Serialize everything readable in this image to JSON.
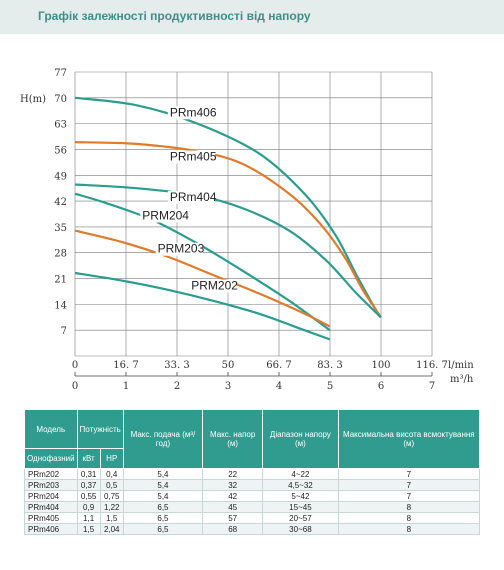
{
  "header": {
    "title": "Графік залежності продуктивності від напору"
  },
  "chart_data": {
    "type": "line",
    "ylabel": "H(m)",
    "y_ticks": [
      "77",
      "70",
      "63",
      "56",
      "49",
      "42",
      "35",
      "28",
      "21",
      "14",
      "7"
    ],
    "x_ticks_lmin": [
      "0",
      "16. 7",
      "33. 3",
      "50",
      "66. 7",
      "83. 3",
      "100",
      "116. 7"
    ],
    "x_ticks_m3h": [
      "0",
      "1",
      "2",
      "3",
      "4",
      "5",
      "6",
      "7"
    ],
    "x_unit_lmin": "l/min",
    "x_unit_m3h": "m³/h",
    "xlim_lmin": [
      0,
      116.7
    ],
    "ylim": [
      0,
      77
    ],
    "grid": true,
    "series": [
      {
        "name": "PRm406",
        "color": "#2a9d8f",
        "points": [
          [
            0,
            70
          ],
          [
            20,
            68
          ],
          [
            40,
            63
          ],
          [
            60,
            55
          ],
          [
            75,
            44
          ],
          [
            85,
            33
          ],
          [
            92,
            22
          ],
          [
            98,
            13
          ],
          [
            100,
            10.5
          ]
        ]
      },
      {
        "name": "PRm405",
        "color": "#e07b2c",
        "points": [
          [
            0,
            58
          ],
          [
            20,
            57.5
          ],
          [
            40,
            55.5
          ],
          [
            55,
            52
          ],
          [
            70,
            44
          ],
          [
            80,
            36
          ],
          [
            88,
            27
          ],
          [
            94,
            18
          ],
          [
            98,
            13
          ],
          [
            100,
            10.5
          ]
        ]
      },
      {
        "name": "PRm404",
        "color": "#2a9d8f",
        "points": [
          [
            0,
            46.5
          ],
          [
            20,
            45.5
          ],
          [
            40,
            43.5
          ],
          [
            55,
            40
          ],
          [
            70,
            34
          ],
          [
            82,
            26
          ],
          [
            92,
            17
          ],
          [
            100,
            10.5
          ]
        ]
      },
      {
        "name": "PRM204",
        "color": "#2a9d8f",
        "points": [
          [
            0,
            44
          ],
          [
            10,
            41.5
          ],
          [
            25,
            37
          ],
          [
            40,
            30.5
          ],
          [
            55,
            23
          ],
          [
            70,
            15
          ],
          [
            83.3,
            7
          ]
        ]
      },
      {
        "name": "PRM203",
        "color": "#e07b2c",
        "points": [
          [
            0,
            34
          ],
          [
            15,
            31
          ],
          [
            30,
            27
          ],
          [
            45,
            22
          ],
          [
            60,
            17
          ],
          [
            75,
            11.5
          ],
          [
            83.3,
            8
          ]
        ]
      },
      {
        "name": "PRM202",
        "color": "#2a9d8f",
        "points": [
          [
            0,
            22.5
          ],
          [
            15,
            20.5
          ],
          [
            30,
            18
          ],
          [
            45,
            15
          ],
          [
            60,
            11.5
          ],
          [
            75,
            7
          ],
          [
            83.3,
            4.5
          ]
        ]
      }
    ],
    "labels": [
      {
        "text": "PRm406",
        "x": 31,
        "y": 65
      },
      {
        "text": "PRm405",
        "x": 31,
        "y": 53
      },
      {
        "text": "PRm404",
        "x": 31,
        "y": 42
      },
      {
        "text": "PRM204",
        "x": 22,
        "y": 37
      },
      {
        "text": "PRM203",
        "x": 27,
        "y": 28
      },
      {
        "text": "PRM202",
        "x": 38,
        "y": 18
      }
    ]
  },
  "table": {
    "col_model": "Модель",
    "col_power": "Потужність",
    "col_flow": "Макс. подача (м³/год)",
    "col_head": "Макс. напор (м)",
    "col_range": "Діапазон напору (м)",
    "col_suction": "Максимальна висота всмоктування (м)",
    "sub_phase": "Однофазний",
    "sub_kw": "кВт",
    "sub_hp": "HP",
    "rows": [
      {
        "model": "PRm202",
        "kw": "0,31",
        "hp": "0,4",
        "flow": "5,4",
        "head": "22",
        "range": "4~22",
        "suction": "7"
      },
      {
        "model": "PRm203",
        "kw": "0,37",
        "hp": "0,5",
        "flow": "5,4",
        "head": "32",
        "range": "4,5~32",
        "suction": "7"
      },
      {
        "model": "PRm204",
        "kw": "0,55",
        "hp": "0,75",
        "flow": "5,4",
        "head": "42",
        "range": "5~42",
        "suction": "7"
      },
      {
        "model": "PRm404",
        "kw": "0,9",
        "hp": "1,22",
        "flow": "6,5",
        "head": "45",
        "range": "15~45",
        "suction": "8"
      },
      {
        "model": "PRm405",
        "kw": "1,1",
        "hp": "1,5",
        "flow": "6,5",
        "head": "57",
        "range": "20~57",
        "suction": "8"
      },
      {
        "model": "PRm406",
        "kw": "1,5",
        "hp": "2,04",
        "flow": "6,5",
        "head": "68",
        "range": "30~68",
        "suction": "8"
      }
    ]
  }
}
